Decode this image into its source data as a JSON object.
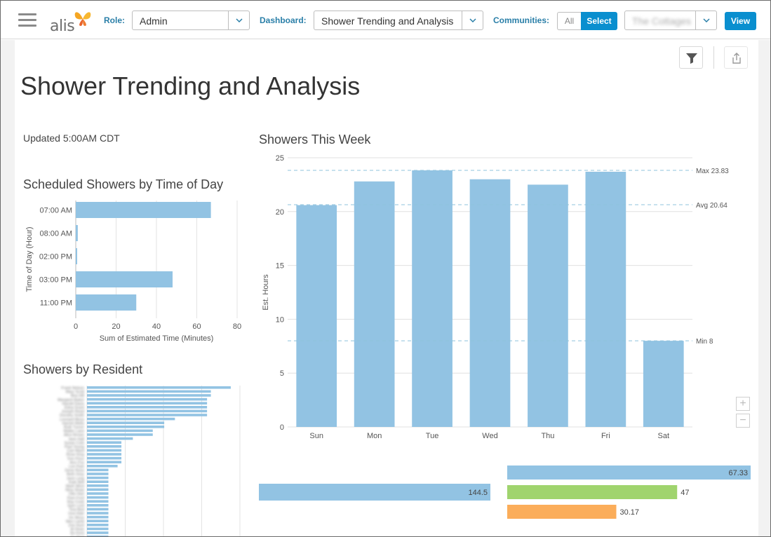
{
  "header": {
    "logo_text": "alis",
    "role_label": "Role:",
    "role_value": "Admin",
    "dashboard_label": "Dashboard:",
    "dashboard_value": "Shower Trending and Analysis",
    "communities_label": "Communities:",
    "communities_all": "All",
    "communities_select": "Select",
    "community_value": "The Cottages",
    "view_label": "View"
  },
  "page": {
    "title": "Shower Trending and Analysis",
    "updated": "Updated 5:00AM CDT"
  },
  "colors": {
    "accent": "#0a8fcf",
    "bar_blue": "#92c3e3",
    "bar_green": "#a0d46e",
    "bar_orange": "#fbad5a",
    "ref_line": "#8fc3dc"
  },
  "chart_data": [
    {
      "type": "bar",
      "orientation": "horizontal",
      "title": "Scheduled Showers by Time of Day",
      "categories": [
        "07:00 AM",
        "08:00 AM",
        "02:00 PM",
        "03:00 PM",
        "11:00 PM"
      ],
      "values": [
        67,
        1,
        0.5,
        48,
        30
      ],
      "xlabel": "Sum of Estimated Time (Minutes)",
      "ylabel": "Time of Day (Hour)",
      "xlim": [
        0,
        80
      ],
      "xticks": [
        0,
        20,
        40,
        60,
        80
      ],
      "grid": true
    },
    {
      "type": "bar",
      "title": "Showers This Week",
      "categories": [
        "Sun",
        "Mon",
        "Tue",
        "Wed",
        "Thu",
        "Fri",
        "Sat"
      ],
      "values": [
        20.6,
        22.8,
        23.83,
        23.0,
        22.5,
        23.7,
        8.0
      ],
      "ylabel": "Est. Hours",
      "ylim": [
        0,
        25
      ],
      "yticks": [
        0,
        5,
        10,
        15,
        20,
        25
      ],
      "reference_lines": [
        {
          "label": "Max 23.83",
          "value": 23.83
        },
        {
          "label": "Avg 20.64",
          "value": 20.64
        },
        {
          "label": "Min 8",
          "value": 8
        }
      ],
      "grid": true
    },
    {
      "type": "bar",
      "orientation": "horizontal",
      "title": "Showers by Resident",
      "values": [
        188,
        162,
        162,
        157,
        157,
        157,
        157,
        157,
        115,
        101,
        101,
        86,
        86,
        60,
        45,
        45,
        45,
        45,
        45,
        45,
        40,
        28,
        28,
        28,
        28,
        28,
        28,
        28,
        28,
        28,
        28,
        28,
        28,
        28,
        28,
        28,
        28,
        28,
        28
      ],
      "xlim": [
        0,
        200
      ],
      "grid": true
    },
    {
      "type": "bar",
      "orientation": "horizontal",
      "values": [
        144.5
      ],
      "data_labels": [
        "144.5"
      ]
    },
    {
      "type": "bar",
      "orientation": "horizontal",
      "values": [
        67.33,
        47,
        30.17
      ],
      "data_labels": [
        "67.33",
        "47",
        "30.17"
      ],
      "colors": [
        "#92c3e3",
        "#a0d46e",
        "#fbad5a"
      ]
    }
  ]
}
